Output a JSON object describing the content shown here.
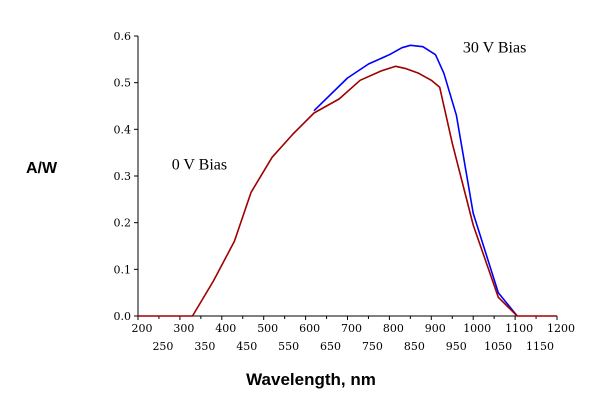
{
  "chart_data": {
    "type": "line",
    "xlabel": "Wavelength, nm",
    "ylabel": "A/W",
    "xlim": [
      200,
      1200
    ],
    "ylim": [
      0,
      0.6
    ],
    "grid": false,
    "x_ticks_top": [
      "200",
      "300",
      "400",
      "500",
      "600",
      "700",
      "800",
      "900",
      "1000",
      "1100",
      "1200"
    ],
    "x_ticks_bottom": [
      "250",
      "350",
      "450",
      "550",
      "650",
      "750",
      "850",
      "950",
      "1050",
      "1150"
    ],
    "y_ticks": [
      "0.0",
      "0.1",
      "0.2",
      "0.3",
      "0.4",
      "0.5",
      "0.6"
    ],
    "annotations": [
      {
        "text": "30 V Bias",
        "x": 985,
        "y": 0.575
      },
      {
        "text": "0 V Bias",
        "x": 290,
        "y": 0.325
      }
    ],
    "series": [
      {
        "name": "30 V Bias",
        "color": "#0000ff",
        "x": [
          620,
          700,
          750,
          800,
          830,
          850,
          880,
          910,
          930,
          960,
          1000,
          1060,
          1105
        ],
        "y": [
          0.44,
          0.51,
          0.54,
          0.56,
          0.575,
          0.58,
          0.577,
          0.56,
          0.52,
          0.43,
          0.22,
          0.05,
          0.0
        ]
      },
      {
        "name": "0 V Bias",
        "color": "#a00000",
        "x": [
          200,
          330,
          380,
          430,
          470,
          520,
          570,
          620,
          680,
          730,
          780,
          815,
          840,
          870,
          900,
          920,
          950,
          1000,
          1060,
          1105,
          1200
        ],
        "y": [
          0.0,
          0.0,
          0.075,
          0.16,
          0.265,
          0.34,
          0.39,
          0.435,
          0.465,
          0.505,
          0.525,
          0.535,
          0.53,
          0.52,
          0.505,
          0.49,
          0.37,
          0.195,
          0.04,
          0.0,
          0.0
        ]
      }
    ]
  }
}
